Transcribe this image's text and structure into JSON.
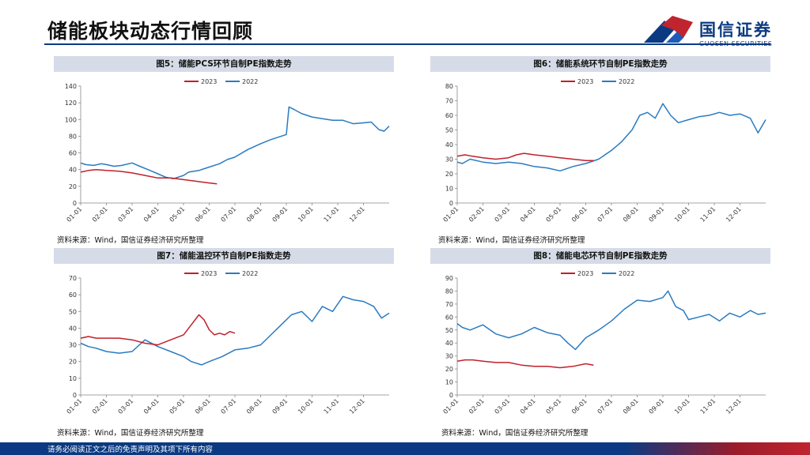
{
  "page": {
    "title": "储能板块动态行情回顾",
    "footer": "请务必阅读正文之后的免责声明及其项下所有内容"
  },
  "logo": {
    "cn": "国信证券",
    "en": "GUOSEN SECURITIES"
  },
  "colors": {
    "s2023": "#c0202a",
    "s2022": "#2a7bc0",
    "navy": "#0b3a82"
  },
  "chart_data": [
    {
      "id": "fig5",
      "type": "line",
      "title": "图5：储能PCS环节自制PE指数走势",
      "source": "资料来源：Wind，国信证券经济研究所整理",
      "ylim": [
        0,
        140
      ],
      "yticks": [
        0,
        20,
        40,
        60,
        80,
        100,
        120,
        140
      ],
      "xticks": [
        "01-01",
        "02-01",
        "03-01",
        "04-01",
        "05-01",
        "06-01",
        "07-01",
        "08-01",
        "09-01",
        "10-01",
        "11-01",
        "12-01"
      ],
      "series": [
        {
          "name": "2023",
          "x": [
            0,
            0.3,
            0.6,
            1.0,
            1.5,
            2.0,
            2.5,
            3.0,
            3.5,
            4.0,
            4.5,
            5.0,
            5.3
          ],
          "values": [
            37,
            39,
            40,
            39,
            38,
            36,
            33,
            30,
            30,
            28,
            26,
            24,
            23
          ]
        },
        {
          "name": "2022",
          "x": [
            0,
            0.2,
            0.5,
            0.8,
            1.0,
            1.3,
            1.6,
            2.0,
            2.3,
            2.7,
            3.0,
            3.3,
            3.6,
            4.0,
            4.2,
            4.6,
            5.0,
            5.4,
            5.7,
            6.0,
            6.5,
            7.0,
            7.4,
            7.8,
            8.0,
            8.1,
            8.3,
            8.6,
            9.0,
            9.4,
            9.8,
            10.2,
            10.6,
            11.0,
            11.3,
            11.6,
            11.8,
            12.0
          ],
          "values": [
            48,
            46,
            45,
            47,
            46,
            44,
            45,
            48,
            44,
            39,
            35,
            31,
            29,
            33,
            37,
            39,
            43,
            47,
            52,
            55,
            64,
            71,
            76,
            80,
            82,
            115,
            112,
            107,
            103,
            101,
            99,
            99,
            95,
            96,
            97,
            88,
            86,
            92
          ]
        }
      ]
    },
    {
      "id": "fig6",
      "type": "line",
      "title": "图6：储能系统环节自制PE指数走势",
      "source": "资料来源：Wind，国信证券经济研究所整理",
      "ylim": [
        0,
        80
      ],
      "yticks": [
        0,
        10,
        20,
        30,
        40,
        50,
        60,
        70,
        80
      ],
      "xticks": [
        "01-01",
        "02-01",
        "03-01",
        "04-01",
        "05-01",
        "06-01",
        "07-01",
        "08-01",
        "09-01",
        "10-01",
        "11-01",
        "12-01"
      ],
      "series": [
        {
          "name": "2023",
          "x": [
            0,
            0.3,
            0.6,
            1.0,
            1.5,
            2.0,
            2.3,
            2.6,
            3.0,
            3.5,
            4.0,
            4.5,
            5.0,
            5.3
          ],
          "values": [
            32,
            33,
            32,
            31,
            30,
            31,
            33,
            34,
            33,
            32,
            31,
            30,
            29,
            29
          ]
        },
        {
          "name": "2022",
          "x": [
            0,
            0.2,
            0.5,
            1.0,
            1.5,
            2.0,
            2.5,
            3.0,
            3.5,
            4.0,
            4.5,
            5.0,
            5.5,
            6.0,
            6.4,
            6.8,
            7.1,
            7.4,
            7.7,
            8.0,
            8.3,
            8.6,
            9.0,
            9.4,
            9.8,
            10.2,
            10.6,
            11.0,
            11.4,
            11.7,
            12.0
          ],
          "values": [
            28,
            27,
            30,
            28,
            27,
            28,
            27,
            25,
            24,
            22,
            25,
            27,
            30,
            36,
            42,
            50,
            60,
            62,
            58,
            68,
            60,
            55,
            57,
            59,
            60,
            62,
            60,
            61,
            58,
            48,
            57
          ]
        }
      ]
    },
    {
      "id": "fig7",
      "type": "line",
      "title": "图7：储能温控环节自制PE指数走势",
      "source": "资料来源：Wind，国信证券经济研究所整理",
      "ylim": [
        0,
        70
      ],
      "yticks": [
        0,
        10,
        20,
        30,
        40,
        50,
        60,
        70
      ],
      "xticks": [
        "01-01",
        "02-01",
        "03-01",
        "04-01",
        "05-01",
        "06-01",
        "07-01",
        "08-01",
        "09-01",
        "10-01",
        "11-01",
        "12-01"
      ],
      "series": [
        {
          "name": "2023",
          "x": [
            0,
            0.3,
            0.6,
            1.0,
            1.5,
            2.0,
            2.5,
            3.0,
            3.5,
            4.0,
            4.3,
            4.6,
            4.8,
            5.0,
            5.2,
            5.4,
            5.6,
            5.8,
            6.0
          ],
          "values": [
            34,
            35,
            34,
            34,
            34,
            33,
            31,
            30,
            33,
            36,
            42,
            48,
            45,
            39,
            36,
            37,
            36,
            38,
            37
          ]
        },
        {
          "name": "2022",
          "x": [
            0,
            0.3,
            0.6,
            1.0,
            1.5,
            2.0,
            2.5,
            3.0,
            3.5,
            4.0,
            4.3,
            4.7,
            5.0,
            5.5,
            6.0,
            6.5,
            7.0,
            7.4,
            7.8,
            8.2,
            8.6,
            9.0,
            9.4,
            9.8,
            10.2,
            10.6,
            11.0,
            11.4,
            11.7,
            12.0
          ],
          "values": [
            31,
            29,
            28,
            26,
            25,
            26,
            33,
            29,
            26,
            23,
            20,
            18,
            20,
            23,
            27,
            28,
            30,
            36,
            42,
            48,
            50,
            44,
            53,
            50,
            59,
            57,
            56,
            53,
            46,
            49
          ]
        }
      ]
    },
    {
      "id": "fig8",
      "type": "line",
      "title": "图8：储能电芯环节自制PE指数走势",
      "source": "资料来源：Wind，国信证券经济研究所整理",
      "ylim": [
        0,
        90
      ],
      "yticks": [
        0,
        10,
        20,
        30,
        40,
        50,
        60,
        70,
        80,
        90
      ],
      "xticks": [
        "01-01",
        "02-01",
        "03-01",
        "04-01",
        "05-01",
        "06-01",
        "07-01",
        "08-01",
        "09-01",
        "10-01",
        "11-01",
        "12-01"
      ],
      "series": [
        {
          "name": "2023",
          "x": [
            0,
            0.3,
            0.6,
            1.0,
            1.5,
            2.0,
            2.5,
            3.0,
            3.5,
            4.0,
            4.5,
            5.0,
            5.3
          ],
          "values": [
            26,
            27,
            27,
            26,
            25,
            25,
            23,
            22,
            22,
            21,
            22,
            24,
            23
          ]
        },
        {
          "name": "2022",
          "x": [
            0,
            0.2,
            0.5,
            1.0,
            1.5,
            2.0,
            2.5,
            3.0,
            3.5,
            4.0,
            4.3,
            4.6,
            5.0,
            5.5,
            6.0,
            6.5,
            7.0,
            7.5,
            8.0,
            8.2,
            8.5,
            8.8,
            9.0,
            9.4,
            9.8,
            10.2,
            10.6,
            11.0,
            11.4,
            11.7,
            12.0
          ],
          "values": [
            55,
            52,
            50,
            54,
            47,
            44,
            47,
            52,
            48,
            46,
            40,
            35,
            44,
            50,
            57,
            66,
            73,
            72,
            75,
            80,
            68,
            65,
            58,
            60,
            62,
            57,
            63,
            60,
            65,
            62,
            63
          ]
        }
      ]
    }
  ]
}
